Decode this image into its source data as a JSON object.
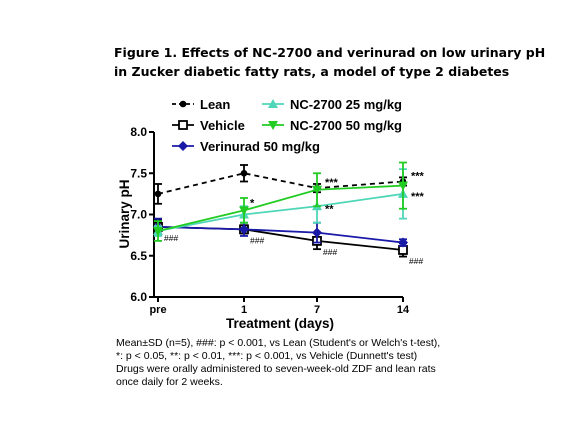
{
  "title_lines": [
    "Figure 1. Effects of NC-2700 and verinurad on low urinary pH",
    "in Zucker diabetic fatty rats, a model of type 2 diabetes"
  ],
  "chart_data": {
    "type": "line",
    "xlabel": "Treatment (days)",
    "ylabel": "Urinary pH",
    "categories": [
      "pre",
      "1",
      "7",
      "14"
    ],
    "ylim": [
      6.0,
      8.0
    ],
    "yticks": [
      "6.0",
      "6.5",
      "7.0",
      "7.5",
      "8.0"
    ],
    "grid": false,
    "legend_position": "top",
    "series": [
      {
        "name": "Lean",
        "color": "#000000",
        "dash": "dashed",
        "marker": "circle",
        "values": [
          7.25,
          7.5,
          7.32,
          7.4
        ],
        "sd": [
          0.12,
          0.1,
          0.05,
          0.05
        ],
        "labels": [
          "",
          "",
          "***",
          "***"
        ]
      },
      {
        "name": "Vehicle",
        "color": "#000000",
        "dash": "solid",
        "marker": "square-open",
        "values": [
          6.85,
          6.82,
          6.68,
          6.57
        ],
        "sd": [
          0.08,
          0.05,
          0.1,
          0.08
        ],
        "labels": [
          "###",
          "###",
          "###",
          "###"
        ]
      },
      {
        "name": "Verinurad 50 mg/kg",
        "color": "#1a1aa8",
        "dash": "solid",
        "marker": "diamond",
        "values": [
          6.85,
          6.82,
          6.78,
          6.66
        ],
        "sd": [
          0.1,
          0.08,
          0.12,
          0.04
        ],
        "labels": [
          "",
          "",
          "",
          ""
        ]
      },
      {
        "name": "NC-2700 25 mg/kg",
        "color": "#4fd6b8",
        "dash": "solid",
        "marker": "triangle-up",
        "values": [
          6.8,
          7.0,
          7.1,
          7.25
        ],
        "sd": [
          0.06,
          0.1,
          0.2,
          0.3
        ],
        "labels": [
          "",
          "",
          "**",
          "***"
        ]
      },
      {
        "name": "NC-2700 50 mg/kg",
        "color": "#22cc22",
        "dash": "solid",
        "marker": "triangle-down",
        "values": [
          6.8,
          7.05,
          7.3,
          7.35
        ],
        "sd": [
          0.12,
          0.15,
          0.2,
          0.28
        ],
        "labels": [
          "",
          "*",
          "",
          ""
        ]
      }
    ]
  },
  "footnote_lines": [
    "Mean±SD (n=5), ###: p < 0.001, vs Lean (Student's or Welch's t-test),",
    "*: p < 0.05, **: p < 0.01, ***: p < 0.001, vs Vehicle (Dunnett's test)",
    "Drugs were orally administered to seven-week-old ZDF and lean rats",
    "once daily for 2 weeks."
  ]
}
